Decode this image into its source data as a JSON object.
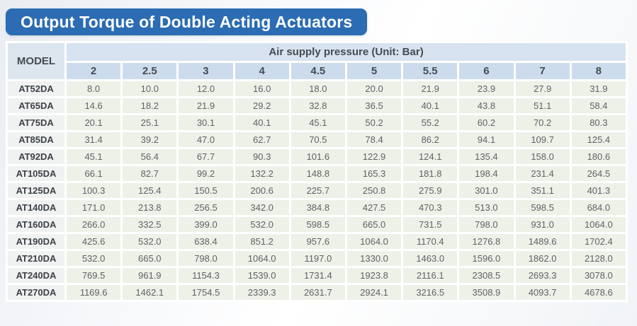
{
  "title": "Output Torque of Double Acting Actuators",
  "colors": {
    "title_bg": "#2b6cb3",
    "title_text": "#ffffff",
    "header_blue": "#d7e3f0",
    "subheader_blue": "#cddcec",
    "model_header_bg": "#dde5ee",
    "model_column_bg": "#f0f1f1",
    "value_cell_bg": "#edf1e8",
    "value_text": "#5e6467",
    "header_text": "#454b51"
  },
  "table": {
    "model_header": "MODEL",
    "pressure_header": "Air supply pressure (Unit: Bar)",
    "pressures": [
      "2",
      "2.5",
      "3",
      "4",
      "4.5",
      "5",
      "5.5",
      "6",
      "7",
      "8"
    ],
    "rows": [
      {
        "model": "AT52DA",
        "values": [
          "8.0",
          "10.0",
          "12.0",
          "16.0",
          "18.0",
          "20.0",
          "21.9",
          "23.9",
          "27.9",
          "31.9"
        ]
      },
      {
        "model": "AT65DA",
        "values": [
          "14.6",
          "18.2",
          "21.9",
          "29.2",
          "32.8",
          "36.5",
          "40.1",
          "43.8",
          "51.1",
          "58.4"
        ]
      },
      {
        "model": "AT75DA",
        "values": [
          "20.1",
          "25.1",
          "30.1",
          "40.1",
          "45.1",
          "50.2",
          "55.2",
          "60.2",
          "70.2",
          "80.3"
        ]
      },
      {
        "model": "AT85DA",
        "values": [
          "31.4",
          "39.2",
          "47.0",
          "62.7",
          "70.5",
          "78.4",
          "86.2",
          "94.1",
          "109.7",
          "125.4"
        ]
      },
      {
        "model": "AT92DA",
        "values": [
          "45.1",
          "56.4",
          "67.7",
          "90.3",
          "101.6",
          "122.9",
          "124.1",
          "135.4",
          "158.0",
          "180.6"
        ]
      },
      {
        "model": "AT105DA",
        "values": [
          "66.1",
          "82.7",
          "99.2",
          "132.2",
          "148.8",
          "165.3",
          "181.8",
          "198.4",
          "231.4",
          "264.5"
        ]
      },
      {
        "model": "AT125DA",
        "values": [
          "100.3",
          "125.4",
          "150.5",
          "200.6",
          "225.7",
          "250.8",
          "275.9",
          "301.0",
          "351.1",
          "401.3"
        ]
      },
      {
        "model": "AT140DA",
        "values": [
          "171.0",
          "213.8",
          "256.5",
          "342.0",
          "384.8",
          "427.5",
          "470.3",
          "513.0",
          "598.5",
          "684.0"
        ]
      },
      {
        "model": "AT160DA",
        "values": [
          "266.0",
          "332.5",
          "399.0",
          "532.0",
          "598.5",
          "665.0",
          "731.5",
          "798.0",
          "931.0",
          "1064.0"
        ]
      },
      {
        "model": "AT190DA",
        "values": [
          "425.6",
          "532.0",
          "638.4",
          "851.2",
          "957.6",
          "1064.0",
          "1170.4",
          "1276.8",
          "1489.6",
          "1702.4"
        ]
      },
      {
        "model": "AT210DA",
        "values": [
          "532.0",
          "665.0",
          "798.0",
          "1064.0",
          "1197.0",
          "1330.0",
          "1463.0",
          "1596.0",
          "1862.0",
          "2128.0"
        ]
      },
      {
        "model": "AT240DA",
        "values": [
          "769.5",
          "961.9",
          "1154.3",
          "1539.0",
          "1731.4",
          "1923.8",
          "2116.1",
          "2308.5",
          "2693.3",
          "3078.0"
        ]
      },
      {
        "model": "AT270DA",
        "values": [
          "1169.6",
          "1462.1",
          "1754.5",
          "2339.3",
          "2631.7",
          "2924.1",
          "3216.5",
          "3508.9",
          "4093.7",
          "4678.6"
        ]
      }
    ]
  }
}
